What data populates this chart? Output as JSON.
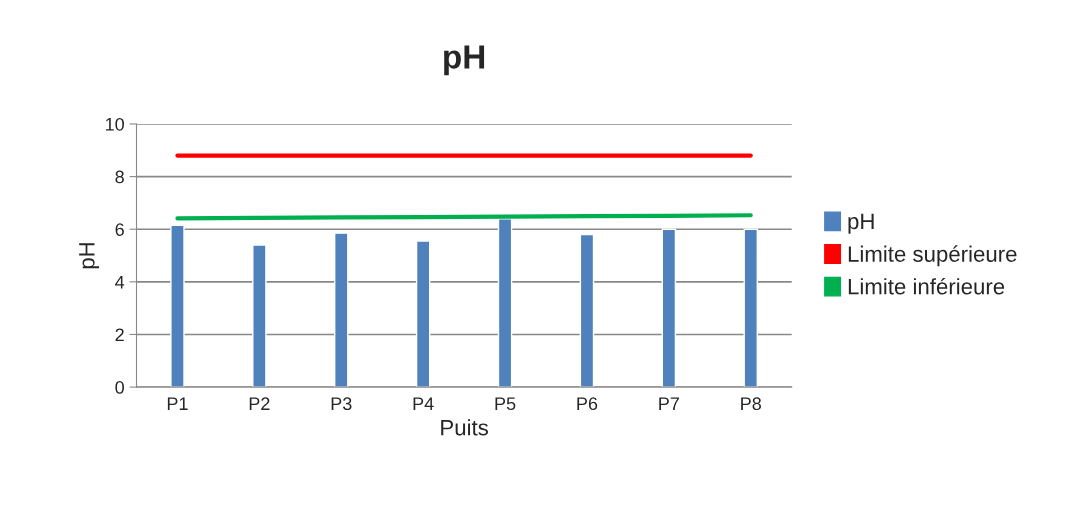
{
  "chart_data": {
    "type": "bar",
    "title": "pH",
    "xlabel": "Puits",
    "ylabel": "pH",
    "categories": [
      "P1",
      "P2",
      "P3",
      "P4",
      "P5",
      "P6",
      "P7",
      "P8"
    ],
    "series": [
      {
        "name": "pH",
        "color": "#4f81bd",
        "values": [
          6.15,
          5.4,
          5.85,
          5.55,
          6.4,
          5.8,
          6.0,
          6.0
        ]
      },
      {
        "name": "Limite supérieure",
        "type": "line",
        "color": "#ff0000",
        "values": [
          8.8,
          8.8,
          8.8,
          8.8,
          8.8,
          8.8,
          8.8,
          8.8
        ]
      },
      {
        "name": "Limite inférieure",
        "type": "line",
        "color": "#00b050",
        "values": [
          6.41,
          6.43,
          6.45,
          6.46,
          6.48,
          6.5,
          6.51,
          6.53
        ]
      }
    ],
    "ylim": [
      0,
      10
    ],
    "yticks": [
      0,
      2,
      4,
      6,
      8,
      10
    ],
    "grid": "y",
    "legend": "right",
    "marker": "none",
    "line_style": "solid"
  }
}
